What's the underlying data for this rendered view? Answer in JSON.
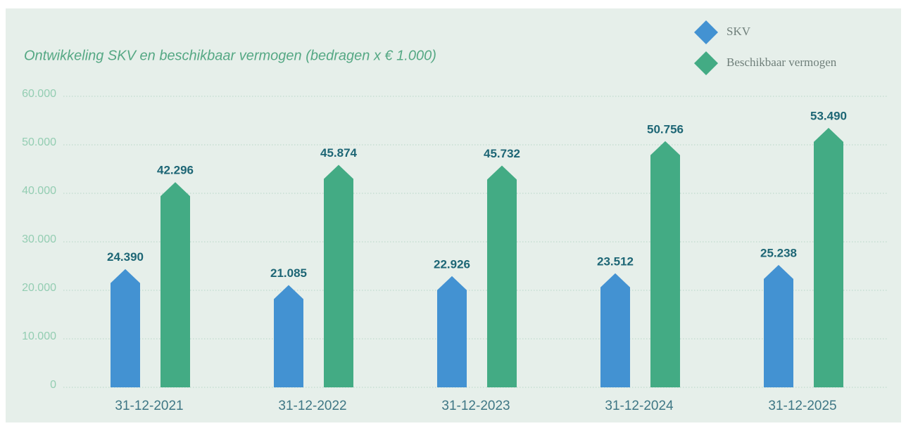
{
  "chart_data": {
    "type": "bar",
    "title": "Ontwikkeling SKV en beschikbaar vermogen (bedragen x € 1.000)",
    "categories": [
      "31-12-2021",
      "31-12-2022",
      "31-12-2023",
      "31-12-2024",
      "31-12-2025"
    ],
    "series": [
      {
        "name": "SKV",
        "color": "#4392d2",
        "values": [
          24390,
          21085,
          22926,
          23512,
          25238
        ],
        "value_labels": [
          "24.390",
          "21.085",
          "22.926",
          "23.512",
          "25.238"
        ]
      },
      {
        "name": "Beschikbaar vermogen",
        "color": "#43ab84",
        "values": [
          42296,
          45874,
          45732,
          50756,
          53490
        ],
        "value_labels": [
          "42.296",
          "45.874",
          "45.732",
          "50.756",
          "53.490"
        ]
      }
    ],
    "ylim": [
      0,
      60000
    ],
    "yticks": [
      0,
      {
        "value": 10000,
        "label": "10.000"
      },
      {
        "value": 20000,
        "label": "20.000"
      },
      {
        "value": 30000,
        "label": "30.000"
      },
      {
        "value": 40000,
        "label": "40.000"
      },
      {
        "value": 50000,
        "label": "50.000"
      },
      {
        "value": 60000,
        "label": "60.000"
      }
    ],
    "grid": true,
    "legend": "top-right"
  }
}
